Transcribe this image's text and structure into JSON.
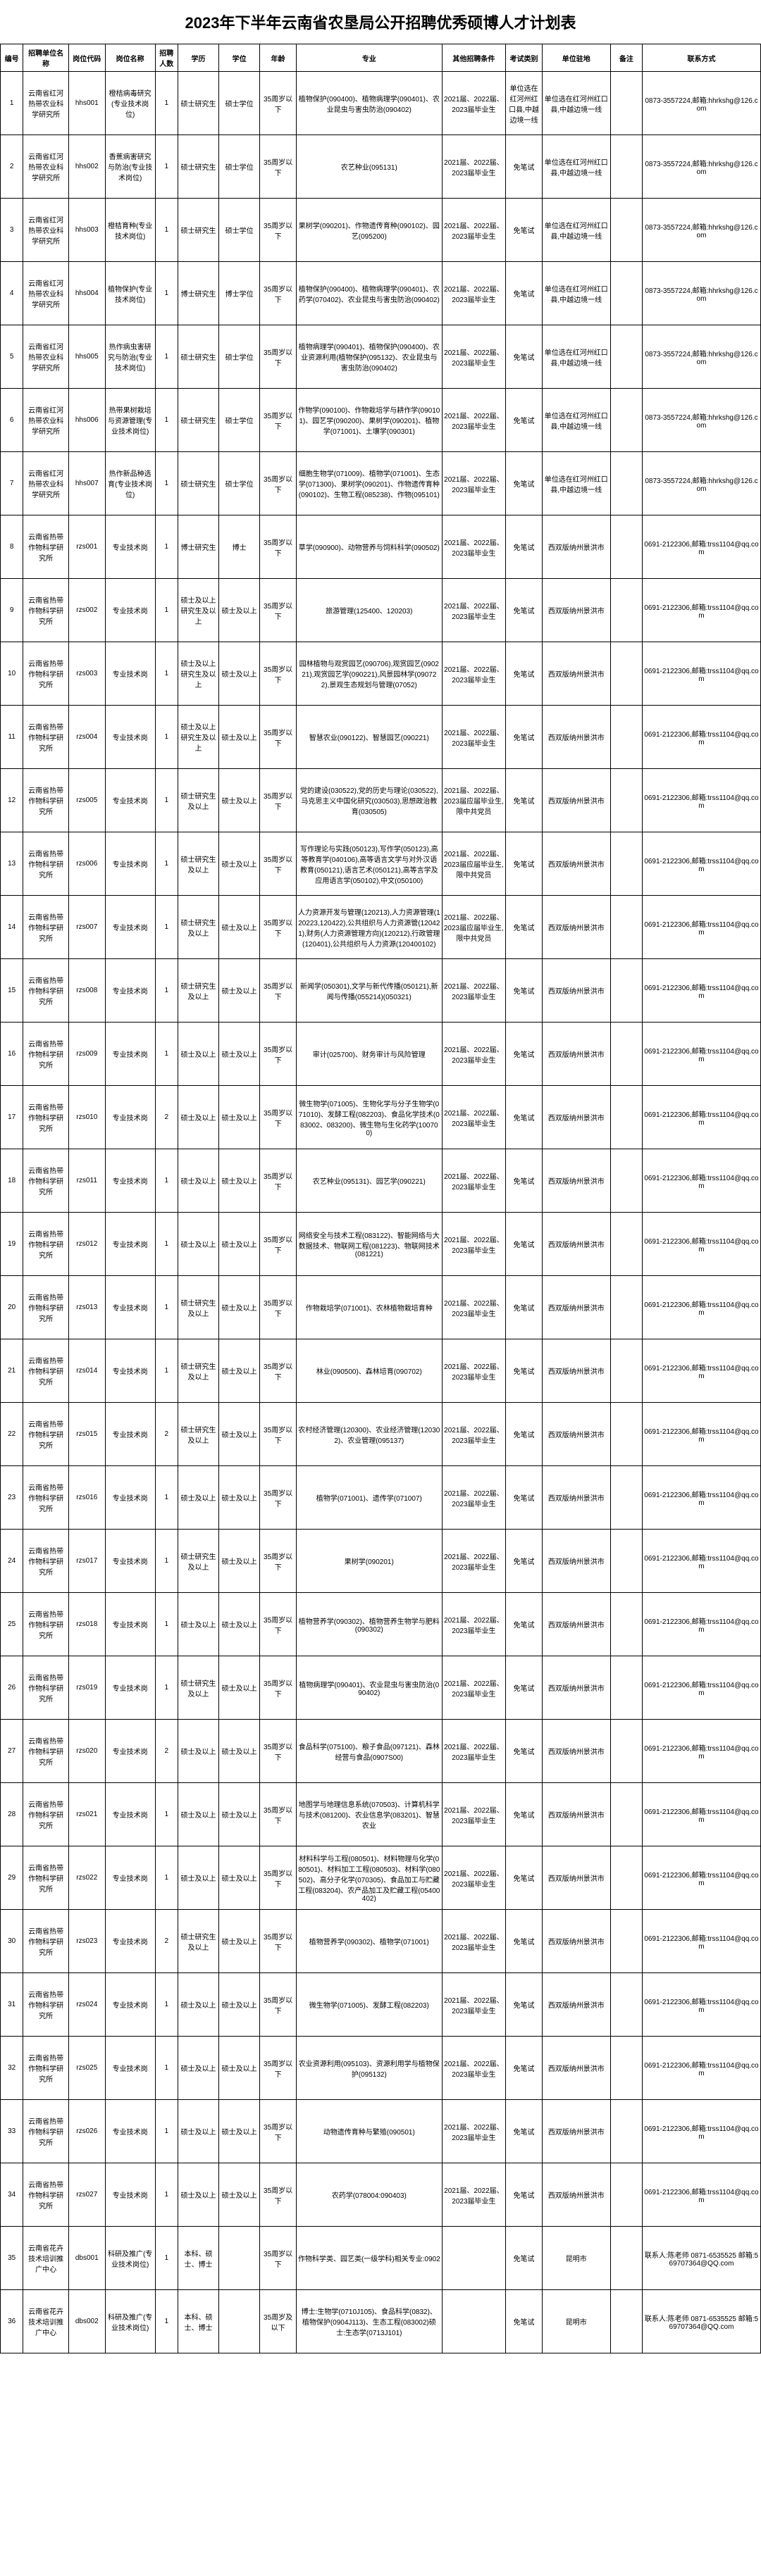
{
  "title": "2023年下半年云南省农垦局公开招聘优秀硕博人才计划表",
  "headers": [
    "编号",
    "招聘单位名称",
    "岗位代码",
    "岗位名称",
    "招聘人数",
    "学历",
    "学位",
    "年龄",
    "专业",
    "其他招聘条件",
    "考试类别",
    "单位驻地",
    "备注",
    "联系方式"
  ],
  "rows": [
    {
      "num": "1",
      "unit": "云南省红河热带农业科学研究所",
      "code": "hhs001",
      "jobname": "橙桔病毒研究(专业技术岗位)",
      "count": "1",
      "edu": "硕士研究生",
      "deg": "硕士学位",
      "age": "35周岁以下",
      "major": "植物保护(090400)、植物病理学(090401)、农业昆虫与害虫防治(090402)",
      "other": "2021届、2022届、2023届毕业生",
      "exam": "单位选在红河州红口县,中越边境一线",
      "loc": "单位选在红河州红口县,中越边境一线",
      "note": "",
      "contact": "0873-3557224,邮箱:hhrkshg@126.com"
    },
    {
      "num": "2",
      "unit": "云南省红河热带农业科学研究所",
      "code": "hhs002",
      "jobname": "香蕉病害研究与防治(专业技术岗位)",
      "count": "1",
      "edu": "硕士研究生",
      "deg": "硕士学位",
      "age": "35周岁以下",
      "major": "农艺种业(095131)",
      "other": "2021届、2022届、2023届毕业生",
      "exam": "免笔试",
      "loc": "单位选在红河州红口县,中越边境一线",
      "note": "",
      "contact": "0873-3557224,邮箱:hhrkshg@126.com"
    },
    {
      "num": "3",
      "unit": "云南省红河热带农业科学研究所",
      "code": "hhs003",
      "jobname": "橙桔育种(专业技术岗位)",
      "count": "1",
      "edu": "硕士研究生",
      "deg": "硕士学位",
      "age": "35周岁以下",
      "major": "果树学(090201)、作物遗传育种(090102)、园艺(095200)",
      "other": "2021届、2022届、2023届毕业生",
      "exam": "免笔试",
      "loc": "单位选在红河州红口县,中越边境一线",
      "note": "",
      "contact": "0873-3557224,邮箱:hhrkshg@126.com"
    },
    {
      "num": "4",
      "unit": "云南省红河热带农业科学研究所",
      "code": "hhs004",
      "jobname": "植物保护(专业技术岗位)",
      "count": "1",
      "edu": "博士研究生",
      "deg": "博士学位",
      "age": "35周岁以下",
      "major": "植物保护(090400)、植物病理学(090401)、农药学(070402)、农业昆虫与害虫防治(090402)",
      "other": "2021届、2022届、2023届毕业生",
      "exam": "免笔试",
      "loc": "单位选在红河州红口县,中越边境一线",
      "note": "",
      "contact": "0873-3557224,邮箱:hhrkshg@126.com"
    },
    {
      "num": "5",
      "unit": "云南省红河热带农业科学研究所",
      "code": "hhs005",
      "jobname": "热作病虫害研究与防治(专业技术岗位)",
      "count": "1",
      "edu": "硕士研究生",
      "deg": "硕士学位",
      "age": "35周岁以下",
      "major": "植物病理学(090401)、植物保护(090400)、农业资源利用(植物保护(095132)、农业昆虫与害虫防治(090402)",
      "other": "2021届、2022届、2023届毕业生",
      "exam": "免笔试",
      "loc": "单位选在红河州红口县,中越边境一线",
      "note": "",
      "contact": "0873-3557224,邮箱:hhrkshg@126.com"
    },
    {
      "num": "6",
      "unit": "云南省红河热带农业科学研究所",
      "code": "hhs006",
      "jobname": "热带果树栽培与资源管理(专业技术岗位)",
      "count": "1",
      "edu": "硕士研究生",
      "deg": "硕士学位",
      "age": "35周岁以下",
      "major": "作物学(090100)、作物栽培学与耕作学(090101)、园艺学(090200)、果树学(090201)、植物学(071001)、土壤学(090301)",
      "other": "2021届、2022届、2023届毕业生",
      "exam": "免笔试",
      "loc": "单位选在红河州红口县,中越边境一线",
      "note": "",
      "contact": "0873-3557224,邮箱:hhrkshg@126.com"
    },
    {
      "num": "7",
      "unit": "云南省红河热带农业科学研究所",
      "code": "hhs007",
      "jobname": "热作新品种选育(专业技术岗位)",
      "count": "1",
      "edu": "硕士研究生",
      "deg": "硕士学位",
      "age": "35周岁以下",
      "major": "细胞生物学(071009)、植物学(071001)、生态学(071300)、果树学(090201)、作物遗传育种(090102)、生物工程(085238)、作物(095101)",
      "other": "2021届、2022届、2023届毕业生",
      "exam": "免笔试",
      "loc": "单位选在红河州红口县,中越边境一线",
      "note": "",
      "contact": "0873-3557224,邮箱:hhrkshg@126.com"
    },
    {
      "num": "8",
      "unit": "云南省热带作物科学研究所",
      "code": "rzs001",
      "jobname": "专业技术岗",
      "count": "1",
      "edu": "博士研究生",
      "deg": "博士",
      "age": "35周岁以下",
      "major": "草学(090900)、动物营养与饲料科学(090502)",
      "other": "2021届、2022届、2023届毕业生",
      "exam": "免笔试",
      "loc": "西双版纳州景洪市",
      "note": "",
      "contact": "0691-2122306,邮箱:trss1104@qq.com"
    },
    {
      "num": "9",
      "unit": "云南省热带作物科学研究所",
      "code": "rzs002",
      "jobname": "专业技术岗",
      "count": "1",
      "edu": "硕士及以上研究生及以上",
      "deg": "硕士及以上",
      "age": "35周岁以下",
      "major": "旅游管理(125400、120203)",
      "other": "2021届、2022届、2023届毕业生",
      "exam": "免笔试",
      "loc": "西双版纳州景洪市",
      "note": "",
      "contact": "0691-2122306,邮箱:trss1104@qq.com"
    },
    {
      "num": "10",
      "unit": "云南省热带作物科学研究所",
      "code": "rzs003",
      "jobname": "专业技术岗",
      "count": "1",
      "edu": "硕士及以上研究生及以上",
      "deg": "硕士及以上",
      "age": "35周岁以下",
      "major": "园林植物与观赏园艺(090706),观赏园艺(090221),观赏园艺学(090221),风景园林学(090722),景观生态规划与管理(07052)",
      "other": "2021届、2022届、2023届毕业生",
      "exam": "免笔试",
      "loc": "西双版纳州景洪市",
      "note": "",
      "contact": "0691-2122306,邮箱:trss1104@qq.com"
    },
    {
      "num": "11",
      "unit": "云南省热带作物科学研究所",
      "code": "rzs004",
      "jobname": "专业技术岗",
      "count": "1",
      "edu": "硕士及以上研究生及以上",
      "deg": "硕士及以上",
      "age": "35周岁以下",
      "major": "智慧农业(090122)、智慧园艺(090221)",
      "other": "2021届、2022届、2023届毕业生",
      "exam": "免笔试",
      "loc": "西双版纳州景洪市",
      "note": "",
      "contact": "0691-2122306,邮箱:trss1104@qq.com"
    },
    {
      "num": "12",
      "unit": "云南省热带作物科学研究所",
      "code": "rzs005",
      "jobname": "专业技术岗",
      "count": "1",
      "edu": "硕士研究生及以上",
      "deg": "硕士及以上",
      "age": "35周岁以下",
      "major": "党的建设(030522),党的历史与理论(030522),马克思主义中国化研究(030503),思想政治教育(030505)",
      "other": "2021届、2022届、2023届应届毕业生,限中共党员",
      "exam": "免笔试",
      "loc": "西双版纳州景洪市",
      "note": "",
      "contact": "0691-2122306,邮箱:trss1104@qq.com"
    },
    {
      "num": "13",
      "unit": "云南省热带作物科学研究所",
      "code": "rzs006",
      "jobname": "专业技术岗",
      "count": "1",
      "edu": "硕士研究生及以上",
      "deg": "硕士及以上",
      "age": "35周岁以下",
      "major": "写作理论与实践(050123),写作学(050123),高等教育学(040106),高等语言文学与对外汉语教育(050121),语言艺术(050121),高等言学及应用语言学(050102),中文(050100)",
      "other": "2021届、2022届、2023届应届毕业生,限中共党员",
      "exam": "免笔试",
      "loc": "西双版纳州景洪市",
      "note": "",
      "contact": "0691-2122306,邮箱:trss1104@qq.com"
    },
    {
      "num": "14",
      "unit": "云南省热带作物科学研究所",
      "code": "rzs007",
      "jobname": "专业技术岗",
      "count": "1",
      "edu": "硕士研究生及以上",
      "deg": "硕士及以上",
      "age": "35周岁以下",
      "major": "人力资源开发与管理(120213),人力资源管理(120223,120422),公共组织与人力资源管(120421),财务(人力资源管理方向)(120212),行政管理(120401),公共组织与人力资源(120400102)",
      "other": "2021届、2022届、2023届应届毕业生,限中共党员",
      "exam": "免笔试",
      "loc": "西双版纳州景洪市",
      "note": "",
      "contact": "0691-2122306,邮箱:trss1104@qq.com"
    },
    {
      "num": "15",
      "unit": "云南省热带作物科学研究所",
      "code": "rzs008",
      "jobname": "专业技术岗",
      "count": "1",
      "edu": "硕士研究生及以上",
      "deg": "硕士及以上",
      "age": "35周岁以下",
      "major": "新闻学(050301),文学与新代传播(050121),新闻与传播(055214)(050321)",
      "other": "2021届、2022届、2023届毕业生",
      "exam": "免笔试",
      "loc": "西双版纳州景洪市",
      "note": "",
      "contact": "0691-2122306,邮箱:trss1104@qq.com"
    },
    {
      "num": "16",
      "unit": "云南省热带作物科学研究所",
      "code": "rzs009",
      "jobname": "专业技术岗",
      "count": "1",
      "edu": "硕士及以上",
      "deg": "硕士及以上",
      "age": "35周岁以下",
      "major": "审计(025700)、财务审计与风险管理",
      "other": "2021届、2022届、2023届毕业生",
      "exam": "免笔试",
      "loc": "西双版纳州景洪市",
      "note": "",
      "contact": "0691-2122306,邮箱:trss1104@qq.com"
    },
    {
      "num": "17",
      "unit": "云南省热带作物科学研究所",
      "code": "rzs010",
      "jobname": "专业技术岗",
      "count": "2",
      "edu": "硕士及以上",
      "deg": "硕士及以上",
      "age": "35周岁以下",
      "major": "微生物学(071005)、生物化学与分子生物学(071010)、发酵工程(082203)、食品化学技术(083002、083200)、微生物与生化药学(100700)",
      "other": "2021届、2022届、2023届毕业生",
      "exam": "免笔试",
      "loc": "西双版纳州景洪市",
      "note": "",
      "contact": "0691-2122306,邮箱:trss1104@qq.com"
    },
    {
      "num": "18",
      "unit": "云南省热带作物科学研究所",
      "code": "rzs011",
      "jobname": "专业技术岗",
      "count": "1",
      "edu": "硕士及以上",
      "deg": "硕士及以上",
      "age": "35周岁以下",
      "major": "农艺种业(095131)、园艺学(090221)",
      "other": "2021届、2022届、2023届毕业生",
      "exam": "免笔试",
      "loc": "西双版纳州景洪市",
      "note": "",
      "contact": "0691-2122306,邮箱:trss1104@qq.com"
    },
    {
      "num": "19",
      "unit": "云南省热带作物科学研究所",
      "code": "rzs012",
      "jobname": "专业技术岗",
      "count": "1",
      "edu": "硕士及以上",
      "deg": "硕士及以上",
      "age": "35周岁以下",
      "major": "网络安全与技术工程(083122)、智能网络与大数据技术、物联网工程(081223)、物联网技术(081221)",
      "other": "2021届、2022届、2023届毕业生",
      "exam": "免笔试",
      "loc": "西双版纳州景洪市",
      "note": "",
      "contact": "0691-2122306,邮箱:trss1104@qq.com"
    },
    {
      "num": "20",
      "unit": "云南省热带作物科学研究所",
      "code": "rzs013",
      "jobname": "专业技术岗",
      "count": "1",
      "edu": "硕士研究生及以上",
      "deg": "硕士及以上",
      "age": "35周岁以下",
      "major": "作物栽培学(071001)、农林植物栽培育种",
      "other": "2021届、2022届、2023届毕业生",
      "exam": "免笔试",
      "loc": "西双版纳州景洪市",
      "note": "",
      "contact": "0691-2122306,邮箱:trss1104@qq.com"
    },
    {
      "num": "21",
      "unit": "云南省热带作物科学研究所",
      "code": "rzs014",
      "jobname": "专业技术岗",
      "count": "1",
      "edu": "硕士研究生及以上",
      "deg": "硕士及以上",
      "age": "35周岁以下",
      "major": "林业(090500)、森林培育(090702)",
      "other": "2021届、2022届、2023届毕业生",
      "exam": "免笔试",
      "loc": "西双版纳州景洪市",
      "note": "",
      "contact": "0691-2122306,邮箱:trss1104@qq.com"
    },
    {
      "num": "22",
      "unit": "云南省热带作物科学研究所",
      "code": "rzs015",
      "jobname": "专业技术岗",
      "count": "2",
      "edu": "硕士研究生及以上",
      "deg": "硕士及以上",
      "age": "35周岁以下",
      "major": "农村经济管理(120300)、农业经济管理(120302)、农业管理(095137)",
      "other": "2021届、2022届、2023届毕业生",
      "exam": "免笔试",
      "loc": "西双版纳州景洪市",
      "note": "",
      "contact": "0691-2122306,邮箱:trss1104@qq.com"
    },
    {
      "num": "23",
      "unit": "云南省热带作物科学研究所",
      "code": "rzs016",
      "jobname": "专业技术岗",
      "count": "1",
      "edu": "硕士及以上",
      "deg": "硕士及以上",
      "age": "35周岁以下",
      "major": "植物学(071001)、遗传学(071007)",
      "other": "2021届、2022届、2023届毕业生",
      "exam": "免笔试",
      "loc": "西双版纳州景洪市",
      "note": "",
      "contact": "0691-2122306,邮箱:trss1104@qq.com"
    },
    {
      "num": "24",
      "unit": "云南省热带作物科学研究所",
      "code": "rzs017",
      "jobname": "专业技术岗",
      "count": "1",
      "edu": "硕士研究生及以上",
      "deg": "硕士及以上",
      "age": "35周岁以下",
      "major": "果树学(090201)",
      "other": "2021届、2022届、2023届毕业生",
      "exam": "免笔试",
      "loc": "西双版纳州景洪市",
      "note": "",
      "contact": "0691-2122306,邮箱:trss1104@qq.com"
    },
    {
      "num": "25",
      "unit": "云南省热带作物科学研究所",
      "code": "rzs018",
      "jobname": "专业技术岗",
      "count": "1",
      "edu": "硕士及以上",
      "deg": "硕士及以上",
      "age": "35周岁以下",
      "major": "植物营养学(090302)、植物营养生物学与肥料(090302)",
      "other": "2021届、2022届、2023届毕业生",
      "exam": "免笔试",
      "loc": "西双版纳州景洪市",
      "note": "",
      "contact": "0691-2122306,邮箱:trss1104@qq.com"
    },
    {
      "num": "26",
      "unit": "云南省热带作物科学研究所",
      "code": "rzs019",
      "jobname": "专业技术岗",
      "count": "1",
      "edu": "硕士研究生及以上",
      "deg": "硕士及以上",
      "age": "35周岁以下",
      "major": "植物病理学(090401)、农业昆虫与害虫防治(090402)",
      "other": "2021届、2022届、2023届毕业生",
      "exam": "免笔试",
      "loc": "西双版纳州景洪市",
      "note": "",
      "contact": "0691-2122306,邮箱:trss1104@qq.com"
    },
    {
      "num": "27",
      "unit": "云南省热带作物科学研究所",
      "code": "rzs020",
      "jobname": "专业技术岗",
      "count": "2",
      "edu": "硕士及以上",
      "deg": "硕士及以上",
      "age": "35周岁以下",
      "major": "食品科学(075100)、粮子食品(097121)、森林经营与食品(0907S00)",
      "other": "2021届、2022届、2023届毕业生",
      "exam": "免笔试",
      "loc": "西双版纳州景洪市",
      "note": "",
      "contact": "0691-2122306,邮箱:trss1104@qq.com"
    },
    {
      "num": "28",
      "unit": "云南省热带作物科学研究所",
      "code": "rzs021",
      "jobname": "专业技术岗",
      "count": "1",
      "edu": "硕士及以上",
      "deg": "硕士及以上",
      "age": "35周岁以下",
      "major": "地图学与地理信息系统(070503)、计算机科学与技术(081200)、农业信息学(083201)、智慧农业",
      "other": "2021届、2022届、2023届毕业生",
      "exam": "免笔试",
      "loc": "西双版纳州景洪市",
      "note": "",
      "contact": "0691-2122306,邮箱:trss1104@qq.com"
    },
    {
      "num": "29",
      "unit": "云南省热带作物科学研究所",
      "code": "rzs022",
      "jobname": "专业技术岗",
      "count": "1",
      "edu": "硕士及以上",
      "deg": "硕士及以上",
      "age": "35周岁以下",
      "major": "材料科学与工程(080501)、材料物理与化学(080501)、材料加工工程(080503)、材料学(080502)、高分子化学(070305)、食品加工与贮藏工程(083204)、农产品加工及贮藏工程(05400402)",
      "other": "2021届、2022届、2023届毕业生",
      "exam": "免笔试",
      "loc": "西双版纳州景洪市",
      "note": "",
      "contact": "0691-2122306,邮箱:trss1104@qq.com"
    },
    {
      "num": "30",
      "unit": "云南省热带作物科学研究所",
      "code": "rzs023",
      "jobname": "专业技术岗",
      "count": "2",
      "edu": "硕士研究生及以上",
      "deg": "硕士及以上",
      "age": "35周岁以下",
      "major": "植物营养学(090302)、植物学(071001)",
      "other": "2021届、2022届、2023届毕业生",
      "exam": "免笔试",
      "loc": "西双版纳州景洪市",
      "note": "",
      "contact": "0691-2122306,邮箱:trss1104@qq.com"
    },
    {
      "num": "31",
      "unit": "云南省热带作物科学研究所",
      "code": "rzs024",
      "jobname": "专业技术岗",
      "count": "1",
      "edu": "硕士及以上",
      "deg": "硕士及以上",
      "age": "35周岁以下",
      "major": "微生物学(071005)、发酵工程(082203)",
      "other": "2021届、2022届、2023届毕业生",
      "exam": "免笔试",
      "loc": "西双版纳州景洪市",
      "note": "",
      "contact": "0691-2122306,邮箱:trss1104@qq.com"
    },
    {
      "num": "32",
      "unit": "云南省热带作物科学研究所",
      "code": "rzs025",
      "jobname": "专业技术岗",
      "count": "1",
      "edu": "硕士及以上",
      "deg": "硕士及以上",
      "age": "35周岁以下",
      "major": "农业资源利用(095103)、资源利用学与植物保护(095132)",
      "other": "2021届、2022届、2023届毕业生",
      "exam": "免笔试",
      "loc": "西双版纳州景洪市",
      "note": "",
      "contact": "0691-2122306,邮箱:trss1104@qq.com"
    },
    {
      "num": "33",
      "unit": "云南省热带作物科学研究所",
      "code": "rzs026",
      "jobname": "专业技术岗",
      "count": "1",
      "edu": "硕士及以上",
      "deg": "硕士及以上",
      "age": "35周岁以下",
      "major": "动物遗传育种与繁殖(090501)",
      "other": "2021届、2022届、2023届毕业生",
      "exam": "免笔试",
      "loc": "西双版纳州景洪市",
      "note": "",
      "contact": "0691-2122306,邮箱:trss1104@qq.com"
    },
    {
      "num": "34",
      "unit": "云南省热带作物科学研究所",
      "code": "rzs027",
      "jobname": "专业技术岗",
      "count": "1",
      "edu": "硕士及以上",
      "deg": "硕士及以上",
      "age": "35周岁以下",
      "major": "农药学(078004:090403)",
      "other": "2021届、2022届、2023届毕业生",
      "exam": "免笔试",
      "loc": "西双版纳州景洪市",
      "note": "",
      "contact": "0691-2122306,邮箱:trss1104@qq.com"
    },
    {
      "num": "35",
      "unit": "云南省花卉技术培训推广中心",
      "code": "dbs001",
      "jobname": "科研及推广(专业技术岗位)",
      "count": "1",
      "edu": "本科、硕士、博士",
      "deg": "",
      "age": "35周岁以下",
      "major": "作物科学类、园艺类(一级学科)相关专业:0902",
      "other": "",
      "exam": "免笔试",
      "loc": "昆明市",
      "note": "",
      "contact": "联系人:陈老师 0871-6535525 邮箱:569707364@QQ.com"
    },
    {
      "num": "36",
      "unit": "云南省花卉技术培训推广中心",
      "code": "dbs002",
      "jobname": "科研及推广(专业技术岗位)",
      "count": "1",
      "edu": "本科、硕士、博士",
      "deg": "",
      "age": "35周岁及以下",
      "major": "博士:生物学(0710J105)、食品科学(0832)、植物保护(0904J113)、生态工程(083002)硕士:生态学(0713J101)",
      "other": "",
      "exam": "免笔试",
      "loc": "昆明市",
      "note": "",
      "contact": "联系人:陈老师 0871-6535525 邮箱:569707364@QQ.com"
    }
  ]
}
